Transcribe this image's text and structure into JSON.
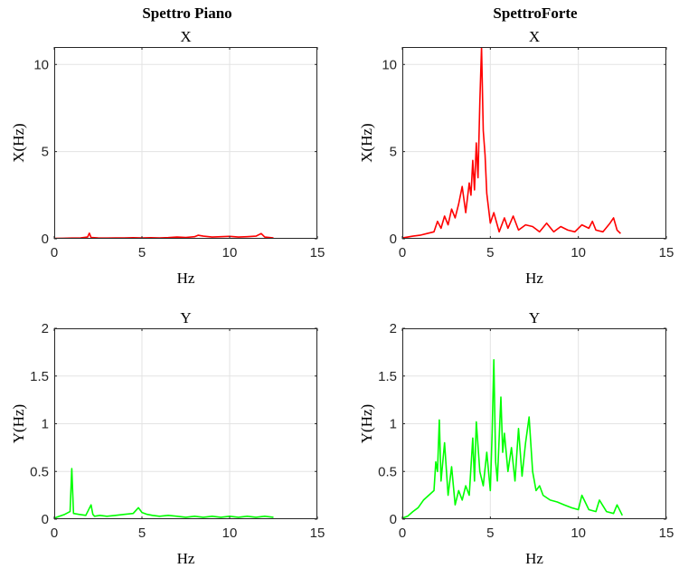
{
  "figure": {
    "left_column_title": "Spettro Piano",
    "right_column_title": "SpettroForte"
  },
  "chart_data": [
    {
      "type": "line",
      "title": "X",
      "xlabel": "Hz",
      "ylabel": "X(Hz)",
      "xlim": [
        0,
        15
      ],
      "ylim": [
        0,
        11
      ],
      "xticks": [
        0,
        5,
        10,
        15
      ],
      "yticks": [
        0,
        5,
        10
      ],
      "grid": true,
      "color": "#ff0000",
      "series": [
        {
          "x": [
            0,
            0.5,
            1,
            1.5,
            1.9,
            2.0,
            2.1,
            2.5,
            3,
            3.5,
            4,
            4.5,
            5,
            5.5,
            6,
            6.5,
            7,
            7.5,
            8,
            8.2,
            8.5,
            9,
            9.5,
            10,
            10.5,
            11,
            11.5,
            11.8,
            12,
            12.5
          ],
          "y": [
            0.02,
            0.03,
            0.04,
            0.05,
            0.1,
            0.32,
            0.08,
            0.05,
            0.04,
            0.05,
            0.05,
            0.06,
            0.05,
            0.06,
            0.05,
            0.07,
            0.1,
            0.08,
            0.12,
            0.2,
            0.15,
            0.1,
            0.12,
            0.14,
            0.1,
            0.12,
            0.15,
            0.3,
            0.1,
            0.05
          ]
        }
      ]
    },
    {
      "type": "line",
      "title": "X",
      "xlabel": "Hz",
      "ylabel": "X(Hz)",
      "xlim": [
        0,
        15
      ],
      "ylim": [
        0,
        11
      ],
      "xticks": [
        0,
        5,
        10,
        15
      ],
      "yticks": [
        0,
        5,
        10
      ],
      "grid": true,
      "color": "#ff0000",
      "series": [
        {
          "x": [
            0,
            0.3,
            0.6,
            1.0,
            1.4,
            1.8,
            2.0,
            2.2,
            2.4,
            2.6,
            2.8,
            3.0,
            3.2,
            3.4,
            3.6,
            3.8,
            3.9,
            4.0,
            4.1,
            4.2,
            4.3,
            4.4,
            4.5,
            4.6,
            4.7,
            4.8,
            5.0,
            5.2,
            5.5,
            5.8,
            6.0,
            6.3,
            6.6,
            7.0,
            7.4,
            7.8,
            8.2,
            8.6,
            9.0,
            9.4,
            9.8,
            10.2,
            10.6,
            10.8,
            11.0,
            11.4,
            11.8,
            12.0,
            12.2,
            12.4
          ],
          "y": [
            0.05,
            0.1,
            0.15,
            0.2,
            0.3,
            0.4,
            1.0,
            0.6,
            1.3,
            0.8,
            1.7,
            1.2,
            2.0,
            3.0,
            1.5,
            3.2,
            2.5,
            4.5,
            2.8,
            5.5,
            3.5,
            7.8,
            11.0,
            6.2,
            4.8,
            2.6,
            0.9,
            1.5,
            0.4,
            1.2,
            0.6,
            1.3,
            0.5,
            0.8,
            0.7,
            0.4,
            0.9,
            0.4,
            0.7,
            0.5,
            0.4,
            0.8,
            0.6,
            1.0,
            0.5,
            0.4,
            0.9,
            1.2,
            0.5,
            0.3
          ]
        }
      ]
    },
    {
      "type": "line",
      "title": "Y",
      "xlabel": "Hz",
      "ylabel": "Y(Hz)",
      "xlim": [
        0,
        15
      ],
      "ylim": [
        0,
        2
      ],
      "xticks": [
        0,
        5,
        10,
        15
      ],
      "yticks": [
        0,
        0.5,
        1,
        1.5,
        2
      ],
      "grid": true,
      "color": "#00ff00",
      "series": [
        {
          "x": [
            0,
            0.3,
            0.6,
            0.9,
            1.0,
            1.1,
            1.4,
            1.8,
            2.1,
            2.2,
            2.3,
            2.6,
            3.0,
            3.5,
            4.0,
            4.5,
            4.8,
            5.0,
            5.3,
            5.6,
            6.0,
            6.5,
            7.0,
            7.5,
            8.0,
            8.5,
            9.0,
            9.5,
            10.0,
            10.5,
            11.0,
            11.5,
            12.0,
            12.5
          ],
          "y": [
            0.01,
            0.03,
            0.05,
            0.08,
            0.53,
            0.06,
            0.05,
            0.04,
            0.15,
            0.05,
            0.03,
            0.04,
            0.03,
            0.04,
            0.05,
            0.06,
            0.12,
            0.07,
            0.05,
            0.04,
            0.03,
            0.04,
            0.03,
            0.02,
            0.03,
            0.02,
            0.03,
            0.02,
            0.03,
            0.02,
            0.03,
            0.02,
            0.03,
            0.02
          ]
        }
      ]
    },
    {
      "type": "line",
      "title": "Y",
      "xlabel": "Hz",
      "ylabel": "Y(Hz)",
      "xlim": [
        0,
        15
      ],
      "ylim": [
        0,
        2
      ],
      "xticks": [
        0,
        5,
        10,
        15
      ],
      "yticks": [
        0,
        0.5,
        1,
        1.5,
        2
      ],
      "grid": true,
      "color": "#00ff00",
      "series": [
        {
          "x": [
            0,
            0.3,
            0.6,
            0.9,
            1.2,
            1.5,
            1.8,
            1.9,
            2.0,
            2.1,
            2.2,
            2.4,
            2.6,
            2.8,
            3.0,
            3.2,
            3.4,
            3.6,
            3.8,
            4.0,
            4.1,
            4.2,
            4.4,
            4.6,
            4.8,
            5.0,
            5.1,
            5.2,
            5.3,
            5.4,
            5.6,
            5.7,
            5.8,
            6.0,
            6.2,
            6.4,
            6.6,
            6.8,
            7.0,
            7.2,
            7.4,
            7.6,
            7.8,
            8.0,
            8.4,
            8.8,
            9.2,
            9.6,
            10.0,
            10.2,
            10.6,
            11.0,
            11.2,
            11.6,
            12.0,
            12.2,
            12.5
          ],
          "y": [
            0.01,
            0.03,
            0.08,
            0.12,
            0.2,
            0.25,
            0.3,
            0.6,
            0.5,
            1.04,
            0.4,
            0.8,
            0.25,
            0.55,
            0.15,
            0.3,
            0.2,
            0.35,
            0.25,
            0.85,
            0.4,
            1.02,
            0.5,
            0.35,
            0.7,
            0.3,
            0.9,
            1.67,
            0.6,
            0.4,
            1.28,
            0.7,
            0.9,
            0.5,
            0.75,
            0.4,
            0.95,
            0.45,
            0.8,
            1.07,
            0.5,
            0.3,
            0.35,
            0.25,
            0.2,
            0.18,
            0.15,
            0.12,
            0.1,
            0.25,
            0.1,
            0.08,
            0.2,
            0.08,
            0.06,
            0.15,
            0.04
          ]
        }
      ]
    }
  ]
}
